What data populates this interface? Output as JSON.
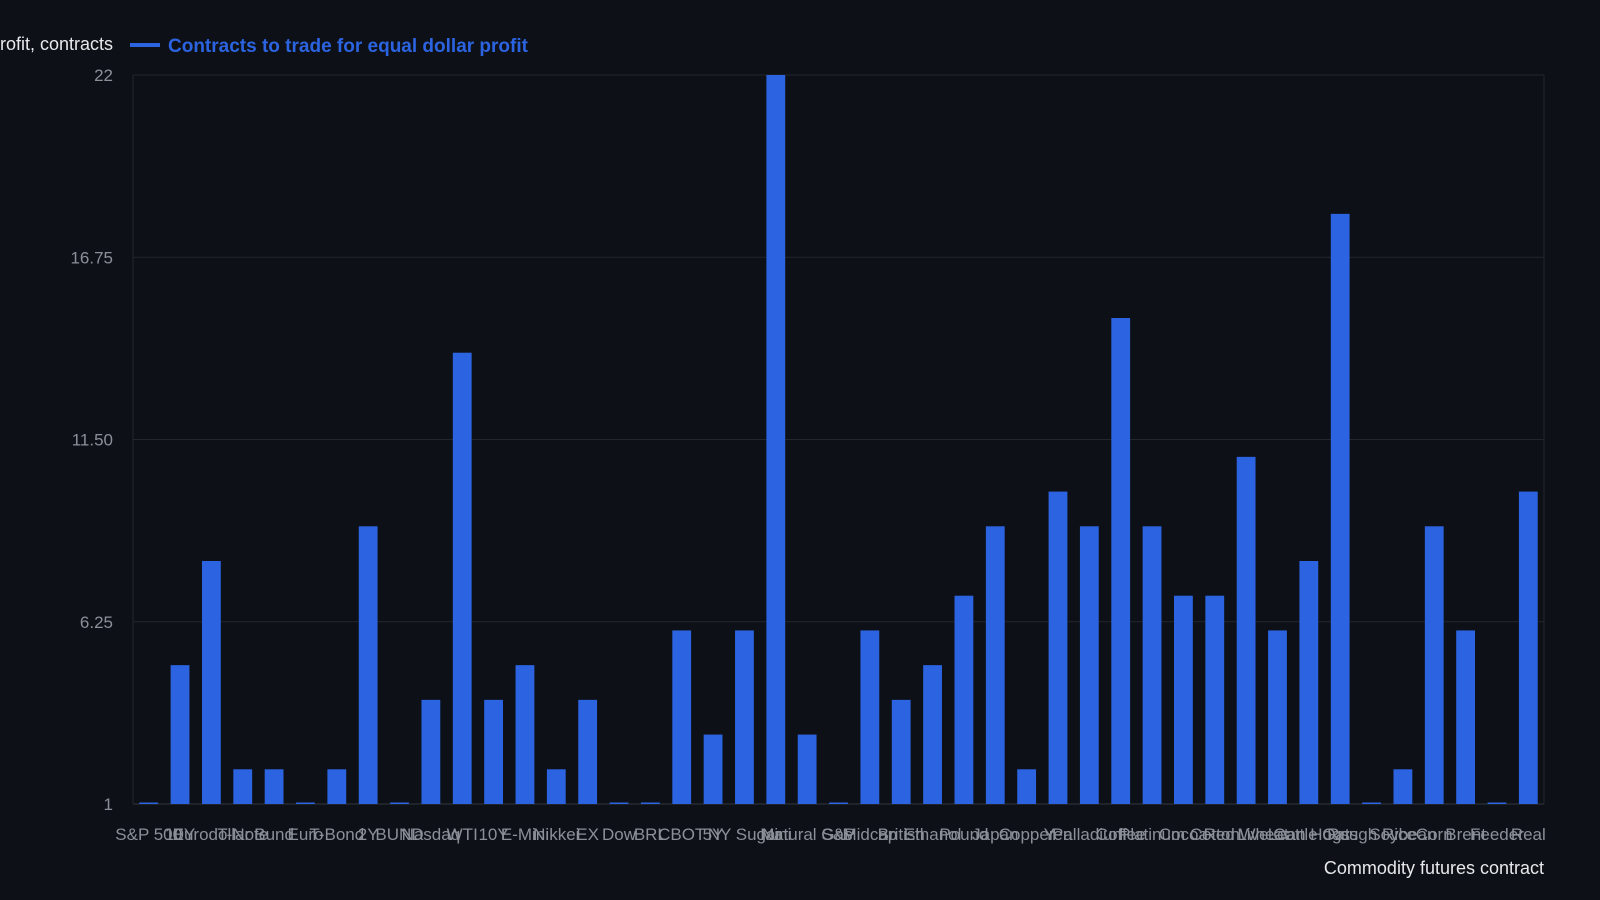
{
  "chart_data": {
    "type": "bar",
    "ylabel": "Contracts to trade for equal dollar profit, contracts",
    "xlabel": "Commodity futures contract",
    "legend": {
      "placement": "top-left",
      "entries": [
        "Contracts to trade for equal dollar profit"
      ]
    },
    "ylim": [
      1,
      22
    ],
    "yticks": [
      "1",
      "6.25",
      "11.50",
      "16.75",
      "22"
    ],
    "grid": true,
    "colors": {
      "bar": "#2b63e0",
      "background": "#0d1117",
      "grid": "#22272e",
      "axis": "#30363d"
    },
    "series": [
      {
        "name": "Contracts to trade for equal dollar profit",
        "values": [
          1,
          5,
          8,
          2,
          2,
          1,
          2,
          9,
          1,
          4,
          14,
          4,
          5,
          2,
          4,
          1,
          1,
          6,
          3,
          6,
          22,
          3,
          1,
          6,
          4,
          5,
          7,
          9,
          2,
          10,
          9,
          15,
          9,
          7,
          7,
          11,
          6,
          8,
          18,
          1,
          2,
          9,
          6,
          1,
          10
        ]
      }
    ],
    "categories": [
      "S&P 500",
      "10Y",
      "Eurodollar",
      "T-Note",
      "Bund",
      "Euro",
      "T-Bond",
      "2Y",
      "BUND",
      "Nasdaq",
      "WTI",
      "10Y",
      "E-Mini",
      "Nikkei",
      "EX",
      "Dow",
      "BRL",
      "CBOT",
      "5Y",
      "NY Sugar",
      "Mini",
      "Natural Gas",
      "S&P",
      "Midcap",
      "British",
      "Ethanol",
      "Pound",
      "Japan",
      "Copper",
      "Yen",
      "Palladium",
      "Coffee",
      "Platinum",
      "Cocoa",
      "Cotton",
      "Red Wheat",
      "Live Cattle",
      "Lean Hogs",
      "Oats",
      "Rough Rice",
      "Soybean",
      "Corn",
      "Brent",
      "Feeder",
      "Real"
    ]
  }
}
